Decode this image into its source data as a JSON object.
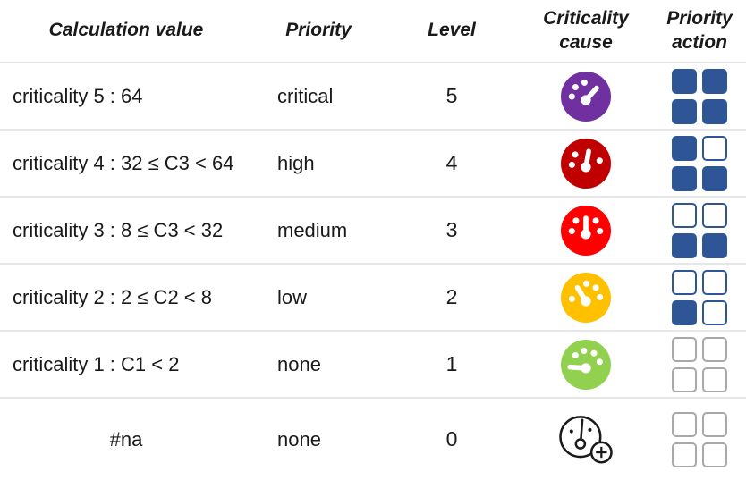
{
  "table": {
    "headers": [
      {
        "name": "header-calculation-value",
        "lines": [
          "Calculation value"
        ]
      },
      {
        "name": "header-priority",
        "lines": [
          "Priority"
        ]
      },
      {
        "name": "header-level",
        "lines": [
          "Level"
        ]
      },
      {
        "name": "header-criticality-cause",
        "lines": [
          "Criticality",
          "cause"
        ]
      },
      {
        "name": "header-priority-action",
        "lines": [
          "Priority",
          "action"
        ]
      }
    ],
    "rows": [
      {
        "calculation_value": "criticality 5 : 64",
        "value_align": "left",
        "priority": "critical",
        "level": "5",
        "cause_icon": {
          "name": "gauge-level-5-icon",
          "style": "filled",
          "color": "#7030A0",
          "needle_angle": 42,
          "dot_angles": [
            -90,
            -48,
            -6
          ]
        },
        "action": {
          "cells": [
            "filled",
            "filled",
            "filled",
            "filled"
          ],
          "filled_color": "#2E5696",
          "border_color": "#2E5696"
        }
      },
      {
        "calculation_value": "criticality 4 : 32 ≤ C3 < 64",
        "value_align": "left",
        "priority": "high",
        "level": "4",
        "cause_icon": {
          "name": "gauge-level-4-icon",
          "style": "filled",
          "color": "#C00000",
          "needle_angle": 10,
          "dot_angles": [
            -95,
            -50,
            78
          ]
        },
        "action": {
          "cells": [
            "filled",
            "empty",
            "filled",
            "filled"
          ],
          "filled_color": "#2E5696",
          "border_color": "#2E5696"
        }
      },
      {
        "calculation_value": "criticality 3 : 8 ≤ C3 < 32",
        "value_align": "left",
        "priority": "medium",
        "level": "3",
        "cause_icon": {
          "name": "gauge-level-3-icon",
          "style": "filled",
          "color": "#FF0000",
          "needle_angle": 0,
          "dot_angles": [
            -92,
            -45,
            45,
            92
          ]
        },
        "action": {
          "cells": [
            "empty",
            "empty",
            "filled",
            "filled"
          ],
          "filled_color": "#2E5696",
          "border_color": "#2E5696"
        }
      },
      {
        "calculation_value": "criticality 2 : 2 ≤ C2 < 8",
        "value_align": "left",
        "priority": "low",
        "level": "2",
        "cause_icon": {
          "name": "gauge-level-2-icon",
          "style": "filled",
          "color": "#FFC000",
          "needle_angle": -32,
          "dot_angles": [
            -95,
            2,
            45,
            88
          ]
        },
        "action": {
          "cells": [
            "empty",
            "empty",
            "filled",
            "empty"
          ],
          "filled_color": "#2E5696",
          "border_color": "#2E5696"
        }
      },
      {
        "calculation_value": "criticality 1 : C1 < 2",
        "value_align": "left",
        "priority": "none",
        "level": "1",
        "cause_icon": {
          "name": "gauge-level-1-icon",
          "style": "filled",
          "color": "#92D050",
          "needle_angle": -86,
          "dot_angles": [
            -48,
            -8,
            35,
            78
          ]
        },
        "action": {
          "cells": [
            "empty",
            "empty",
            "empty",
            "empty"
          ],
          "filled_color": "#2E5696",
          "border_color": "#A8A8A8"
        }
      },
      {
        "calculation_value": "#na",
        "value_align": "center",
        "priority": "none",
        "level": "0",
        "cause_icon": {
          "name": "gauge-add-icon",
          "style": "outline-add",
          "color": "#1a1a1a"
        },
        "action": {
          "cells": [
            "empty",
            "empty",
            "empty",
            "empty"
          ],
          "filled_color": "#2E5696",
          "border_color": "#A8A8A8"
        }
      }
    ]
  },
  "colors": {
    "text": "#1a1a1a",
    "separator": "#e2e2e2",
    "action_filled_blue": "#2E5696",
    "action_empty_gray_border": "#A8A8A8",
    "gauge_purple": "#7030A0",
    "gauge_dark_red": "#C00000",
    "gauge_red": "#FF0000",
    "gauge_yellow": "#FFC000",
    "gauge_green": "#92D050"
  }
}
